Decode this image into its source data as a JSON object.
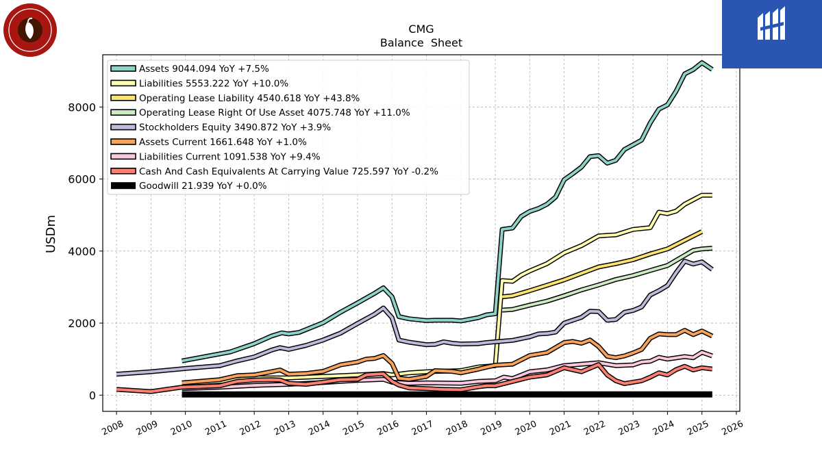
{
  "logos": {
    "left_brand": "CHIPOTLE MEXICAN GRILL",
    "right_brand": "MIDGARD FINANCE"
  },
  "chart_data": {
    "type": "line",
    "title": "CMG",
    "subtitle": "Balance  Sheet",
    "xlabel": "",
    "ylabel": "USDm",
    "xlim": [
      2007.6,
      2026.1
    ],
    "ylim": [
      -450,
      9450
    ],
    "x_ticks": [
      "2008",
      "2009",
      "2010",
      "2011",
      "2012",
      "2013",
      "2014",
      "2015",
      "2016",
      "2017",
      "2018",
      "2019",
      "2020",
      "2021",
      "2022",
      "2023",
      "2024",
      "2025",
      "2026"
    ],
    "y_ticks": [
      0,
      2000,
      4000,
      6000,
      8000
    ],
    "grid": true,
    "legend_position": "top-left",
    "series": [
      {
        "name": "Assets",
        "legend": "Assets  9044.094 YoY +7.5%",
        "color": "#8dd3c7",
        "points": [
          [
            2009.9,
            950
          ],
          [
            2011.3,
            1200
          ],
          [
            2012,
            1430
          ],
          [
            2012.5,
            1640
          ],
          [
            2012.8,
            1730
          ],
          [
            2013,
            1700
          ],
          [
            2013.3,
            1740
          ],
          [
            2014,
            2010
          ],
          [
            2014.5,
            2300
          ],
          [
            2015,
            2560
          ],
          [
            2015.5,
            2830
          ],
          [
            2015.75,
            2980
          ],
          [
            2016,
            2730
          ],
          [
            2016.2,
            2180
          ],
          [
            2016.5,
            2120
          ],
          [
            2017,
            2070
          ],
          [
            2017.25,
            2080
          ],
          [
            2017.75,
            2080
          ],
          [
            2018,
            2060
          ],
          [
            2018.5,
            2150
          ],
          [
            2018.75,
            2230
          ],
          [
            2019,
            2260
          ],
          [
            2019.2,
            4600
          ],
          [
            2019.5,
            4640
          ],
          [
            2019.75,
            4960
          ],
          [
            2020,
            5100
          ],
          [
            2020.25,
            5180
          ],
          [
            2020.5,
            5300
          ],
          [
            2020.75,
            5500
          ],
          [
            2021,
            5980
          ],
          [
            2021.25,
            6150
          ],
          [
            2021.5,
            6330
          ],
          [
            2021.75,
            6620
          ],
          [
            2022,
            6650
          ],
          [
            2022.25,
            6440
          ],
          [
            2022.5,
            6520
          ],
          [
            2022.75,
            6820
          ],
          [
            2023,
            6950
          ],
          [
            2023.25,
            7080
          ],
          [
            2023.5,
            7560
          ],
          [
            2023.75,
            7940
          ],
          [
            2024,
            8060
          ],
          [
            2024.25,
            8440
          ],
          [
            2024.5,
            8920
          ],
          [
            2024.75,
            9040
          ],
          [
            2025,
            9230
          ],
          [
            2025.3,
            9040
          ]
        ]
      },
      {
        "name": "Liabilities",
        "legend": "Liabilities  5553.222 YoY +10.0%",
        "color": "#ffffb3",
        "points": [
          [
            2009.9,
            320
          ],
          [
            2011,
            380
          ],
          [
            2012,
            480
          ],
          [
            2013,
            480
          ],
          [
            2014,
            520
          ],
          [
            2015,
            560
          ],
          [
            2015.75,
            600
          ],
          [
            2016,
            560
          ],
          [
            2016.5,
            620
          ],
          [
            2017,
            650
          ],
          [
            2018,
            680
          ],
          [
            2018.5,
            780
          ],
          [
            2019,
            820
          ],
          [
            2019.2,
            3180
          ],
          [
            2019.5,
            3160
          ],
          [
            2019.75,
            3330
          ],
          [
            2020,
            3450
          ],
          [
            2020.5,
            3650
          ],
          [
            2021,
            3950
          ],
          [
            2021.5,
            4150
          ],
          [
            2022,
            4420
          ],
          [
            2022.5,
            4450
          ],
          [
            2023,
            4600
          ],
          [
            2023.5,
            4650
          ],
          [
            2023.75,
            5080
          ],
          [
            2024,
            5040
          ],
          [
            2024.25,
            5110
          ],
          [
            2024.5,
            5300
          ],
          [
            2025,
            5550
          ],
          [
            2025.3,
            5550
          ]
        ]
      },
      {
        "name": "Operating Lease Liability",
        "legend": "Operating Lease Liability  4540.618 YoY +43.8%",
        "color": "#fbe36f",
        "points": [
          [
            2019.2,
            2730
          ],
          [
            2019.5,
            2760
          ],
          [
            2020,
            2900
          ],
          [
            2020.5,
            3050
          ],
          [
            2021,
            3200
          ],
          [
            2021.5,
            3380
          ],
          [
            2022,
            3560
          ],
          [
            2022.5,
            3650
          ],
          [
            2023,
            3760
          ],
          [
            2023.5,
            3920
          ],
          [
            2024,
            4060
          ],
          [
            2024.5,
            4300
          ],
          [
            2025,
            4540
          ]
        ]
      },
      {
        "name": "Operating Lease Right Of Use Asset",
        "legend": "Operating Lease Right Of Use Asset  4075.748 YoY +11.0%",
        "color": "#ccebc5",
        "points": [
          [
            2019.2,
            2360
          ],
          [
            2019.5,
            2380
          ],
          [
            2020,
            2500
          ],
          [
            2020.5,
            2610
          ],
          [
            2021,
            2760
          ],
          [
            2021.5,
            2920
          ],
          [
            2022,
            3060
          ],
          [
            2022.5,
            3210
          ],
          [
            2023,
            3320
          ],
          [
            2023.5,
            3460
          ],
          [
            2024,
            3600
          ],
          [
            2024.5,
            3880
          ],
          [
            2024.75,
            4020
          ],
          [
            2025,
            4060
          ],
          [
            2025.3,
            4080
          ]
        ]
      },
      {
        "name": "Stockholders Equity",
        "legend": "Stockholders Equity  3490.872 YoY +3.9%",
        "color": "#bebada",
        "points": [
          [
            2008,
            580
          ],
          [
            2009,
            650
          ],
          [
            2010,
            740
          ],
          [
            2011,
            820
          ],
          [
            2011.5,
            950
          ],
          [
            2012,
            1060
          ],
          [
            2012.5,
            1250
          ],
          [
            2012.75,
            1320
          ],
          [
            2013,
            1270
          ],
          [
            2013.5,
            1380
          ],
          [
            2014,
            1530
          ],
          [
            2014.5,
            1720
          ],
          [
            2015,
            1990
          ],
          [
            2015.5,
            2250
          ],
          [
            2015.75,
            2420
          ],
          [
            2016,
            2150
          ],
          [
            2016.2,
            1530
          ],
          [
            2016.5,
            1470
          ],
          [
            2017,
            1400
          ],
          [
            2017.25,
            1410
          ],
          [
            2017.5,
            1480
          ],
          [
            2017.75,
            1440
          ],
          [
            2018,
            1420
          ],
          [
            2018.5,
            1430
          ],
          [
            2018.75,
            1460
          ],
          [
            2019,
            1480
          ],
          [
            2019.5,
            1520
          ],
          [
            2020,
            1620
          ],
          [
            2020.25,
            1700
          ],
          [
            2020.5,
            1710
          ],
          [
            2020.75,
            1750
          ],
          [
            2021,
            2000
          ],
          [
            2021.5,
            2160
          ],
          [
            2021.75,
            2330
          ],
          [
            2022,
            2320
          ],
          [
            2022.25,
            2080
          ],
          [
            2022.5,
            2100
          ],
          [
            2022.75,
            2300
          ],
          [
            2023,
            2350
          ],
          [
            2023.25,
            2450
          ],
          [
            2023.5,
            2780
          ],
          [
            2023.75,
            2900
          ],
          [
            2024,
            3040
          ],
          [
            2024.25,
            3400
          ],
          [
            2024.5,
            3720
          ],
          [
            2024.75,
            3640
          ],
          [
            2025,
            3700
          ],
          [
            2025.3,
            3490
          ]
        ]
      },
      {
        "name": "Assets Current",
        "legend": "Assets Current  1661.648 YoY +1.0%",
        "color": "#f7a35c",
        "points": [
          [
            2009.9,
            340
          ],
          [
            2011,
            430
          ],
          [
            2011.5,
            540
          ],
          [
            2012,
            560
          ],
          [
            2012.5,
            650
          ],
          [
            2012.75,
            700
          ],
          [
            2013,
            580
          ],
          [
            2013.5,
            600
          ],
          [
            2014,
            660
          ],
          [
            2014.5,
            840
          ],
          [
            2015,
            920
          ],
          [
            2015.25,
            1000
          ],
          [
            2015.5,
            1020
          ],
          [
            2015.75,
            1100
          ],
          [
            2016,
            880
          ],
          [
            2016.2,
            470
          ],
          [
            2016.5,
            440
          ],
          [
            2017,
            520
          ],
          [
            2017.25,
            680
          ],
          [
            2017.75,
            660
          ],
          [
            2018,
            620
          ],
          [
            2018.5,
            720
          ],
          [
            2018.75,
            780
          ],
          [
            2019,
            830
          ],
          [
            2019.5,
            860
          ],
          [
            2020,
            1100
          ],
          [
            2020.5,
            1180
          ],
          [
            2021,
            1460
          ],
          [
            2021.25,
            1490
          ],
          [
            2021.5,
            1440
          ],
          [
            2021.75,
            1530
          ],
          [
            2022,
            1350
          ],
          [
            2022.25,
            1080
          ],
          [
            2022.5,
            1040
          ],
          [
            2022.75,
            1090
          ],
          [
            2023,
            1170
          ],
          [
            2023.25,
            1270
          ],
          [
            2023.5,
            1580
          ],
          [
            2023.75,
            1700
          ],
          [
            2024,
            1680
          ],
          [
            2024.25,
            1680
          ],
          [
            2024.5,
            1800
          ],
          [
            2024.75,
            1680
          ],
          [
            2025,
            1780
          ],
          [
            2025.3,
            1640
          ]
        ]
      },
      {
        "name": "Liabilities Current",
        "legend": "Liabilities Current  1091.538 YoY +9.4%",
        "color": "#fbc8df",
        "points": [
          [
            2009.9,
            180
          ],
          [
            2011,
            220
          ],
          [
            2012,
            270
          ],
          [
            2013,
            300
          ],
          [
            2014,
            350
          ],
          [
            2015,
            410
          ],
          [
            2015.75,
            440
          ],
          [
            2016,
            360
          ],
          [
            2016.5,
            330
          ],
          [
            2017,
            340
          ],
          [
            2018,
            330
          ],
          [
            2018.5,
            380
          ],
          [
            2019,
            400
          ],
          [
            2019.25,
            500
          ],
          [
            2019.5,
            460
          ],
          [
            2020,
            650
          ],
          [
            2020.5,
            700
          ],
          [
            2021,
            820
          ],
          [
            2021.5,
            860
          ],
          [
            2022,
            900
          ],
          [
            2022.5,
            820
          ],
          [
            2023,
            840
          ],
          [
            2023.25,
            920
          ],
          [
            2023.5,
            940
          ],
          [
            2023.75,
            1050
          ],
          [
            2024,
            1000
          ],
          [
            2024.5,
            1070
          ],
          [
            2024.75,
            1040
          ],
          [
            2025,
            1190
          ],
          [
            2025.3,
            1090
          ]
        ]
      },
      {
        "name": "Cash And Cash Equivalents At Carrying Value",
        "legend": "Cash And Cash Equivalents At Carrying Value  725.597 YoY -0.2%",
        "color": "#fb8072",
        "points": [
          [
            2008,
            160
          ],
          [
            2009,
            100
          ],
          [
            2009.9,
            220
          ],
          [
            2011,
            260
          ],
          [
            2011.5,
            380
          ],
          [
            2012,
            420
          ],
          [
            2012.5,
            430
          ],
          [
            2012.75,
            420
          ],
          [
            2013,
            330
          ],
          [
            2013.5,
            300
          ],
          [
            2014,
            360
          ],
          [
            2014.5,
            430
          ],
          [
            2015,
            440
          ],
          [
            2015.25,
            560
          ],
          [
            2015.5,
            580
          ],
          [
            2015.75,
            590
          ],
          [
            2016,
            380
          ],
          [
            2016.2,
            280
          ],
          [
            2016.5,
            200
          ],
          [
            2017,
            180
          ],
          [
            2017.5,
            160
          ],
          [
            2018,
            150
          ],
          [
            2018.5,
            230
          ],
          [
            2018.75,
            260
          ],
          [
            2019,
            260
          ],
          [
            2019.5,
            380
          ],
          [
            2020,
            500
          ],
          [
            2020.5,
            560
          ],
          [
            2021,
            760
          ],
          [
            2021.5,
            650
          ],
          [
            2022,
            850
          ],
          [
            2022.25,
            560
          ],
          [
            2022.5,
            400
          ],
          [
            2022.75,
            320
          ],
          [
            2023,
            360
          ],
          [
            2023.25,
            400
          ],
          [
            2023.5,
            500
          ],
          [
            2023.75,
            620
          ],
          [
            2024,
            560
          ],
          [
            2024.25,
            710
          ],
          [
            2024.5,
            800
          ],
          [
            2024.75,
            700
          ],
          [
            2025,
            760
          ],
          [
            2025.3,
            726
          ]
        ]
      },
      {
        "name": "Goodwill",
        "legend": "Goodwill  21.939 YoY +0.0%",
        "color": "#000000",
        "points": [
          [
            2009.9,
            22
          ],
          [
            2025.3,
            22
          ]
        ]
      }
    ]
  }
}
